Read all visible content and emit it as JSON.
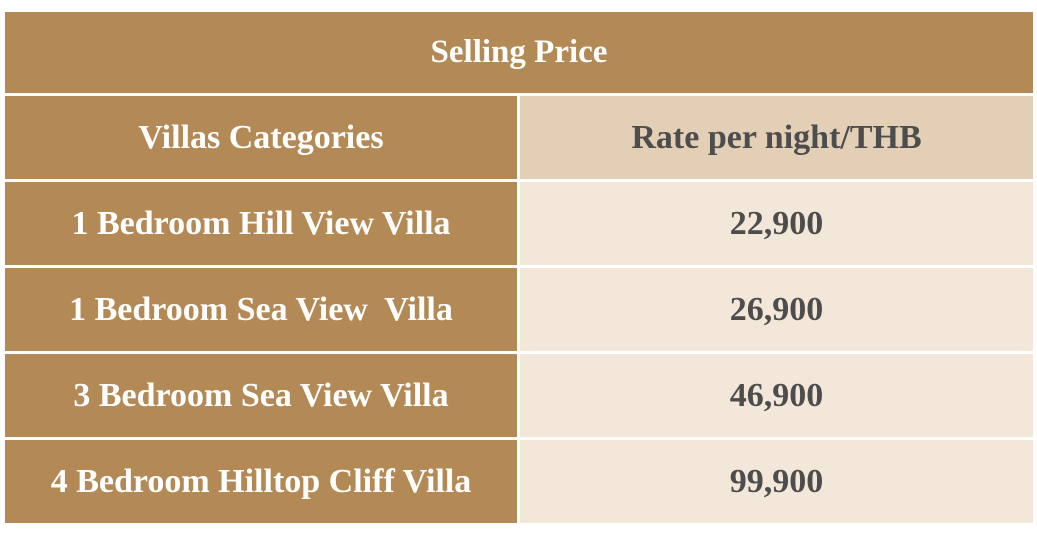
{
  "header": {
    "title": "Selling Price"
  },
  "table": {
    "columns": [
      "Villas Categories",
      "Rate per night/THB"
    ],
    "rows": [
      [
        "1 Bedroom Hill View Villa",
        "22,900"
      ],
      [
        "1 Bedroom Sea View  Villa",
        "26,900"
      ],
      [
        "3 Bedroom Sea View Villa",
        "46,900"
      ],
      [
        "4 Bedroom Hilltop Cliff Villa",
        "99,900"
      ]
    ]
  }
}
